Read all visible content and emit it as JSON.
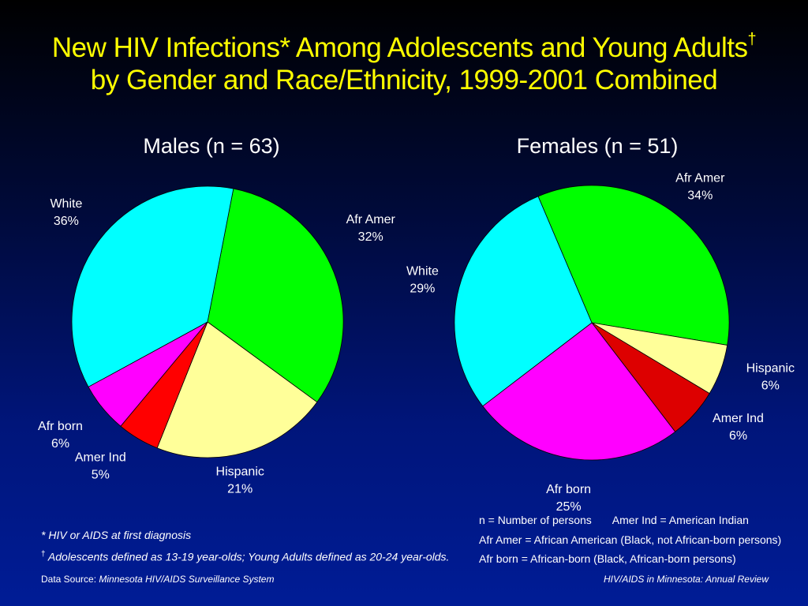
{
  "title": {
    "line1": "New HIV Infections* Among Adolescents and Young Adults",
    "line1_mark": "†",
    "line2": "by Gender and Race/Ethnicity, 1999-2001 Combined"
  },
  "chart_data": [
    {
      "type": "pie",
      "title": "Males (n = 63)",
      "start_category": "Afr Amer",
      "slices": [
        {
          "label": "Afr Amer",
          "value": 32,
          "display": "32%",
          "color": "#00ff00"
        },
        {
          "label": "Hispanic",
          "value": 21,
          "display": "21%",
          "color": "#ffff99"
        },
        {
          "label": "Amer Ind",
          "value": 5,
          "display": "5%",
          "color": "#ff0000"
        },
        {
          "label": "Afr born",
          "value": 6,
          "display": "6%",
          "color": "#ff00ff"
        },
        {
          "label": "White",
          "value": 36,
          "display": "36%",
          "color": "#00ffff"
        }
      ]
    },
    {
      "type": "pie",
      "title": "Females (n = 51)",
      "start_category": "Afr Amer",
      "slices": [
        {
          "label": "Afr Amer",
          "value": 34,
          "display": "34%",
          "color": "#00ff00"
        },
        {
          "label": "Hispanic",
          "value": 6,
          "display": "6%",
          "color": "#ffff99"
        },
        {
          "label": "Amer Ind",
          "value": 6,
          "display": "6%",
          "color": "#dd0000"
        },
        {
          "label": "Afr born",
          "value": 25,
          "display": "25%",
          "color": "#ff00ff"
        },
        {
          "label": "White",
          "value": 29,
          "display": "29%",
          "color": "#00ffff"
        }
      ]
    }
  ],
  "footnotes": {
    "asterisk": "* HIV or AIDS at first diagnosis",
    "dagger_mark": "†",
    "dagger": " Adolescents defined as 13-19 year-olds; Young Adults defined as 20-24 year-olds."
  },
  "legend": {
    "line1a": "n = Number of persons",
    "line1b": "Amer Ind = American Indian",
    "line2": "Afr Amer = African American (Black, not African-born persons)",
    "line3": "Afr born = African-born (Black, African-born persons)"
  },
  "source": {
    "left_prefix": "Data Source: ",
    "left_name": "Minnesota HIV/AIDS Surveillance System",
    "right": "HIV/AIDS in Minnesota: Annual Review"
  }
}
